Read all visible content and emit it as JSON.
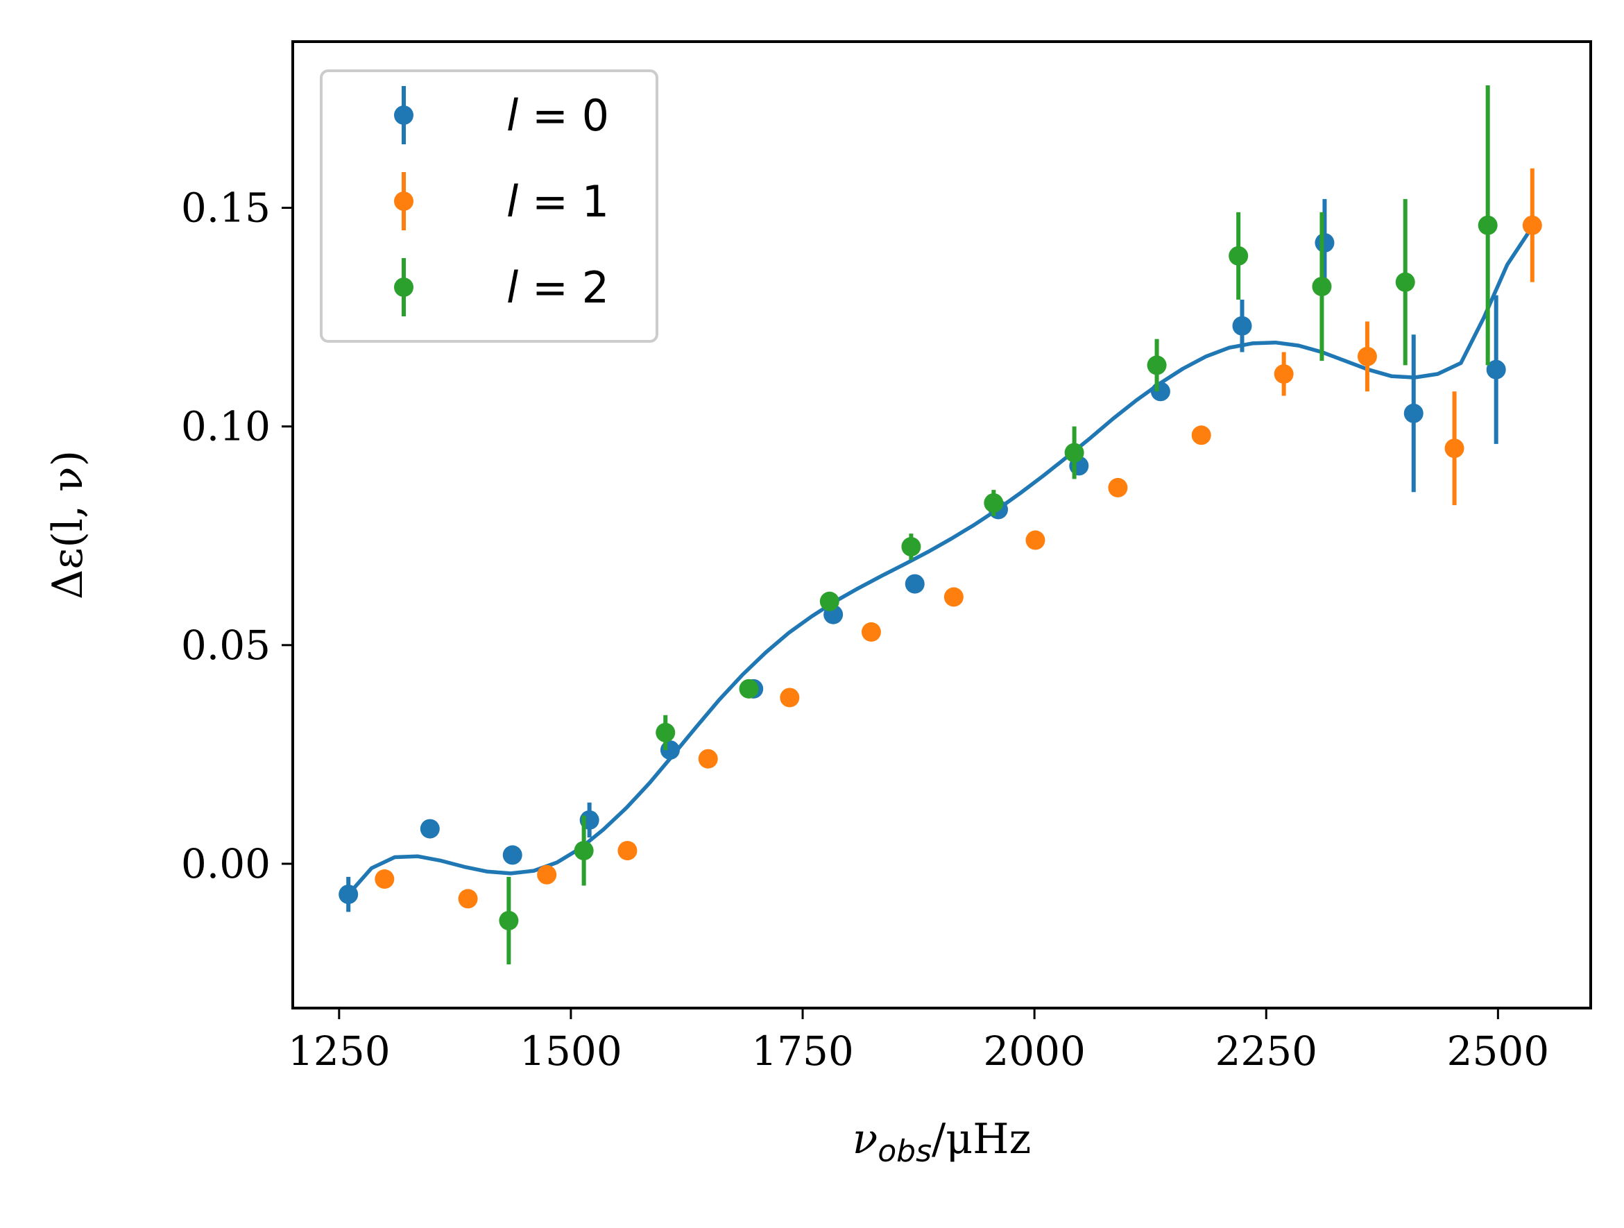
{
  "chart_data": {
    "type": "scatter",
    "xlabel": "ν_obs/μHz",
    "ylabel": "Δε(l, ν)",
    "xlim": [
      1200,
      2600
    ],
    "ylim": [
      -0.033,
      0.188
    ],
    "xticks": [
      1250,
      1500,
      1750,
      2000,
      2250,
      2500
    ],
    "yticks": [
      0.0,
      0.05,
      0.1,
      0.15
    ],
    "ytick_labels": [
      "0.00",
      "0.05",
      "0.10",
      "0.15"
    ],
    "legend_position": "upper-left",
    "series": [
      {
        "name": "l = 0",
        "color": "#1f77b4",
        "points": [
          {
            "x": 1260,
            "y": -0.007,
            "err": 0.004
          },
          {
            "x": 1348,
            "y": 0.008,
            "err": 0.002
          },
          {
            "x": 1437,
            "y": 0.002,
            "err": 0.002
          },
          {
            "x": 1520,
            "y": 0.01,
            "err": 0.004
          },
          {
            "x": 1607,
            "y": 0.026,
            "err": 0.002
          },
          {
            "x": 1697,
            "y": 0.04,
            "err": 0.002
          },
          {
            "x": 1783,
            "y": 0.057,
            "err": 0.002
          },
          {
            "x": 1871,
            "y": 0.064,
            "err": 0.002
          },
          {
            "x": 1961,
            "y": 0.081,
            "err": 0.002
          },
          {
            "x": 2048,
            "y": 0.091,
            "err": 0.002
          },
          {
            "x": 2136,
            "y": 0.108,
            "err": 0.002
          },
          {
            "x": 2224,
            "y": 0.123,
            "err": 0.006
          },
          {
            "x": 2313,
            "y": 0.142,
            "err": 0.01
          },
          {
            "x": 2409,
            "y": 0.103,
            "err": 0.018
          },
          {
            "x": 2498,
            "y": 0.113,
            "err": 0.017
          }
        ]
      },
      {
        "name": "l = 1",
        "color": "#ff7f0e",
        "points": [
          {
            "x": 1299,
            "y": -0.0035,
            "err": 0.001
          },
          {
            "x": 1389,
            "y": -0.008,
            "err": 0.001
          },
          {
            "x": 1474,
            "y": -0.0025,
            "err": 0.001
          },
          {
            "x": 1561,
            "y": 0.003,
            "err": 0.001
          },
          {
            "x": 1648,
            "y": 0.024,
            "err": 0.001
          },
          {
            "x": 1736,
            "y": 0.038,
            "err": 0.001
          },
          {
            "x": 1824,
            "y": 0.053,
            "err": 0.001
          },
          {
            "x": 1913,
            "y": 0.061,
            "err": 0.001
          },
          {
            "x": 2001,
            "y": 0.074,
            "err": 0.001
          },
          {
            "x": 2090,
            "y": 0.086,
            "err": 0.001
          },
          {
            "x": 2180,
            "y": 0.098,
            "err": 0.002
          },
          {
            "x": 2269,
            "y": 0.112,
            "err": 0.005
          },
          {
            "x": 2359,
            "y": 0.116,
            "err": 0.008
          },
          {
            "x": 2453,
            "y": 0.095,
            "err": 0.013
          },
          {
            "x": 2537,
            "y": 0.146,
            "err": 0.013
          }
        ]
      },
      {
        "name": "l = 2",
        "color": "#2ca02c",
        "points": [
          {
            "x": 1433,
            "y": -0.013,
            "err": 0.01
          },
          {
            "x": 1514,
            "y": 0.003,
            "err": 0.008
          },
          {
            "x": 1602,
            "y": 0.03,
            "err": 0.004
          },
          {
            "x": 1692,
            "y": 0.04,
            "err": 0.002
          },
          {
            "x": 1779,
            "y": 0.06,
            "err": 0.002
          },
          {
            "x": 1867,
            "y": 0.0725,
            "err": 0.003
          },
          {
            "x": 1956,
            "y": 0.0825,
            "err": 0.003
          },
          {
            "x": 2043,
            "y": 0.094,
            "err": 0.006
          },
          {
            "x": 2132,
            "y": 0.114,
            "err": 0.006
          },
          {
            "x": 2220,
            "y": 0.139,
            "err": 0.01
          },
          {
            "x": 2310,
            "y": 0.132,
            "err": 0.017
          },
          {
            "x": 2400,
            "y": 0.133,
            "err": 0.019
          },
          {
            "x": 2489,
            "y": 0.146,
            "err": 0.032
          }
        ]
      }
    ],
    "fit_line": {
      "color": "#1f77b4",
      "x": [
        1260,
        1285,
        1310,
        1335,
        1360,
        1385,
        1410,
        1435,
        1460,
        1485,
        1510,
        1535,
        1560,
        1585,
        1610,
        1635,
        1660,
        1685,
        1710,
        1735,
        1760,
        1785,
        1810,
        1835,
        1860,
        1885,
        1910,
        1935,
        1960,
        1985,
        2010,
        2035,
        2060,
        2085,
        2110,
        2135,
        2160,
        2185,
        2210,
        2235,
        2260,
        2285,
        2310,
        2335,
        2360,
        2385,
        2410,
        2435,
        2460,
        2485,
        2510,
        2535
      ],
      "y": [
        -0.007,
        -0.001,
        0.0015,
        0.0017,
        0.0007,
        -0.0007,
        -0.0018,
        -0.0022,
        -0.0016,
        0.0003,
        0.0035,
        0.0078,
        0.0128,
        0.0185,
        0.0248,
        0.0312,
        0.0375,
        0.0432,
        0.0483,
        0.0528,
        0.0566,
        0.06,
        0.063,
        0.0658,
        0.0685,
        0.0713,
        0.0743,
        0.0775,
        0.081,
        0.0848,
        0.0888,
        0.093,
        0.0973,
        0.1018,
        0.106,
        0.1098,
        0.1132,
        0.116,
        0.118,
        0.119,
        0.1192,
        0.1185,
        0.117,
        0.115,
        0.113,
        0.1115,
        0.1112,
        0.112,
        0.1145,
        0.125,
        0.137,
        0.145
      ]
    }
  }
}
